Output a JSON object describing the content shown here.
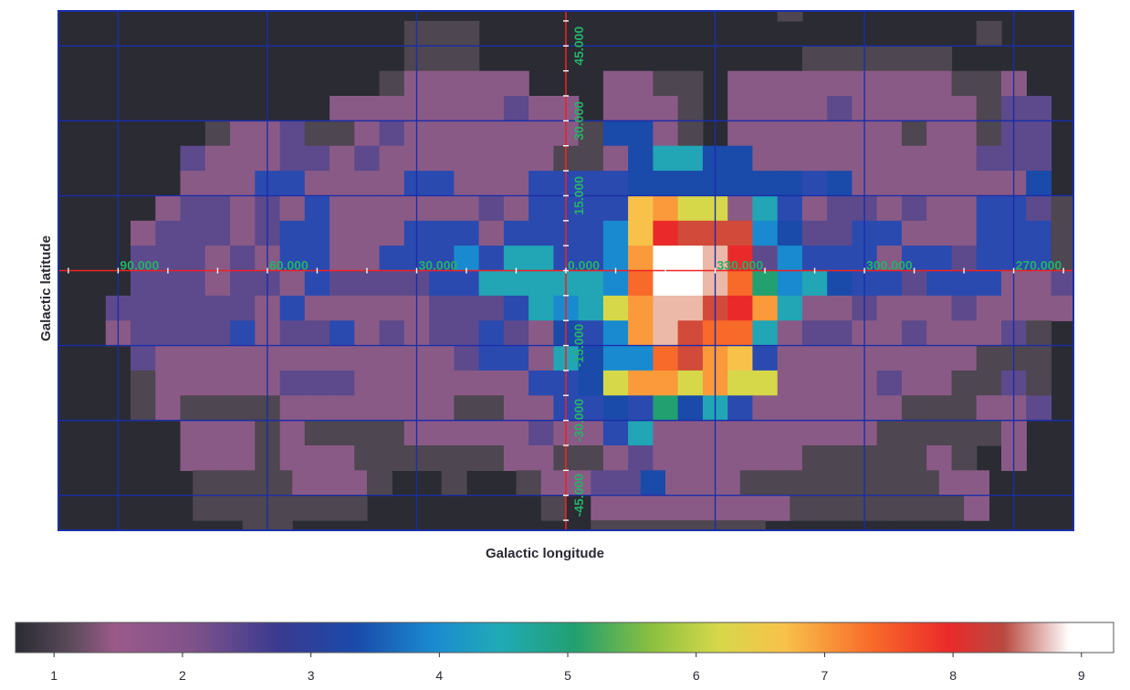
{
  "chart_data": {
    "type": "heatmap",
    "title": "",
    "xlabel": "Galactic longitude",
    "ylabel": "Galactic latitude",
    "projection": "plate-carree (CAR)",
    "lon_tick_labels": [
      "90.000",
      "60.000",
      "30.000",
      "0.000",
      "330.000",
      "300.000",
      "270.000"
    ],
    "lat_tick_labels": [
      "45.000",
      "30.000",
      "15.000",
      "-15.000",
      "-30.000",
      "-45.000"
    ],
    "grid": true,
    "colorbar": {
      "ticks": [
        "1",
        "2",
        "3",
        "4",
        "5",
        "6",
        "7",
        "8",
        "9"
      ],
      "range": [
        0.7,
        9.25
      ]
    },
    "pixel_size_deg": 5,
    "lon_range_deg": [
      102,
      -102
    ],
    "lat_range_deg": [
      -52,
      52
    ],
    "colors": {
      "background": "#2a2b33",
      "grid": "#1a2ea8",
      "axis": "#ee2222",
      "tick_label": "#27b06a"
    },
    "grid_rows": [
      "#########################################",
      "#############################A###########",
      "##############AAA####################A###",
      "##############AAA#############AAAAAA#####",
      "#############ABBBBB###BBAA#BBBBBBBBBAAB##",
      "###########BBBBBBBCBB#BBBA#BBBBCBBBBBACC#",
      "######ABBCAABCBBBBBBBADDBA#BBBBBBBABBACC#",
      "#####CBBBCCBCBBBBBBBAABDGGDDBBBBBBBBBCCC#",
      "#####BBBEEBBBBEEBBBEEEEDDDDDDDEDBBBBBBBD#",
      "####BCCBCBEBBBBBBCBEEEEJKIIBGEBCCBCBBEECA",
      "###BCCCBCEEBBBEEEBEEEEFJNMMMFDCCEEBBBEEEA",
      "###CCCBCBEEBBEEEFEGGEEFKPPONCFEEEBEECEEEA",
      "###CCCBCCBECCCCEEGGGGGFLPPOLHFGDEECEEEBBC",
      "##CCCCCCBEBBBBBCCCEGFGIKOOMNKGBBCBBBCBBBB",
      "##BCCCCEBCCEBCBCCECBDEFKOMLLGBCCBBCBBBCA#",
      "###CBBBBBBBBBBBBCEEBGDFFLMKJEBBBBBBBBAAA#",
      "###ABBBBBCCCBBBBBBBEEDIKKIKIIBBBBCBBAACA#",
      "###ABAAAABBBBBBBAABBEEDEHDGEBBBBBBAAABBC#",
      "#####BBBABAAAABBBBBCBBEGBBBBBBBBBAAAAAB##",
      "#####BBBABBBAAAAAABBAABCBBBBBBAAAAABA#B##",
      "#####AAAABBBA##A##ABBCCDBBBAAAAAAAABB###",
      "#####AAAAAAA#######A#BBBBBBBBAAAAAAAB###",
      "#######AA############AAAAAAA############",
      "#######A################################"
    ]
  }
}
